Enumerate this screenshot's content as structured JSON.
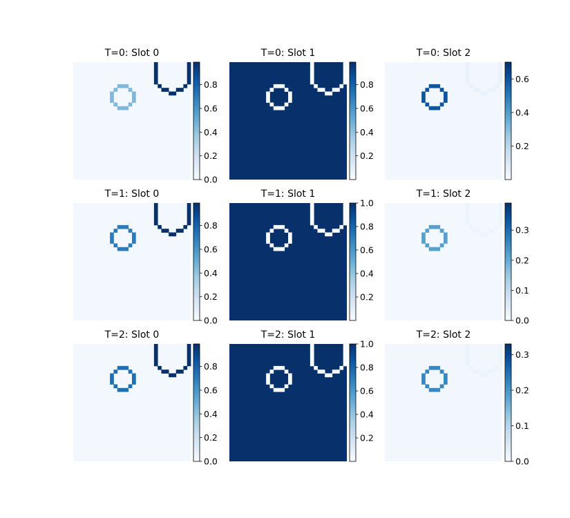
{
  "figure": {
    "colormap": "Blues",
    "colors": {
      "low": "#f7fbff",
      "mid": "#6baed6",
      "high": "#08306b"
    }
  },
  "chart_data": [
    {
      "type": "heatmap",
      "title": "T=0: Slot 0",
      "grid": [
        32,
        32
      ],
      "colorbar": {
        "range": [
          0.0,
          0.99
        ],
        "ticks": [
          0.0,
          0.2,
          0.4,
          0.6,
          0.8
        ],
        "tick_labels": [
          "0.0",
          "0.2",
          "0.4",
          "0.6",
          "0.8"
        ]
      },
      "background_value": 0.02,
      "mask_circle_value": 0.45,
      "mask_arc_value": 0.99
    },
    {
      "type": "heatmap",
      "title": "T=0: Slot 1",
      "grid": [
        32,
        32
      ],
      "colorbar": {
        "range": [
          0.0,
          0.99
        ],
        "ticks": [
          0.2,
          0.4,
          0.6,
          0.8
        ],
        "tick_labels": [
          "0.2",
          "0.4",
          "0.6",
          "0.8"
        ]
      },
      "background_value": 0.99,
      "mask_circle_value": 0.0,
      "mask_arc_value": 0.0
    },
    {
      "type": "heatmap",
      "title": "T=0: Slot 2",
      "grid": [
        32,
        32
      ],
      "colorbar": {
        "range": [
          0.0,
          0.7
        ],
        "ticks": [
          0.2,
          0.4,
          0.6
        ],
        "tick_labels": [
          "0.2",
          "0.4",
          "0.6"
        ]
      },
      "background_value": 0.02,
      "mask_circle_value": 0.6,
      "mask_arc_value": 0.05
    },
    {
      "type": "heatmap",
      "title": "T=1: Slot 0",
      "grid": [
        32,
        32
      ],
      "colorbar": {
        "range": [
          0.0,
          0.99
        ],
        "ticks": [
          0.0,
          0.2,
          0.4,
          0.6,
          0.8
        ],
        "tick_labels": [
          "0.0",
          "0.2",
          "0.4",
          "0.6",
          "0.8"
        ]
      },
      "background_value": 0.02,
      "mask_circle_value": 0.7,
      "mask_arc_value": 0.99
    },
    {
      "type": "heatmap",
      "title": "T=1: Slot 1",
      "grid": [
        32,
        32
      ],
      "colorbar": {
        "range": [
          0.0,
          1.0
        ],
        "ticks": [
          0.2,
          0.4,
          0.6,
          0.8,
          1.0
        ],
        "tick_labels": [
          "0.2",
          "0.4",
          "0.6",
          "0.8",
          "1.0"
        ]
      },
      "background_value": 1.0,
      "mask_circle_value": 0.0,
      "mask_arc_value": 0.0
    },
    {
      "type": "heatmap",
      "title": "T=1: Slot 2",
      "grid": [
        32,
        32
      ],
      "colorbar": {
        "range": [
          0.0,
          0.39
        ],
        "ticks": [
          0.0,
          0.1,
          0.2,
          0.3
        ],
        "tick_labels": [
          "0.0",
          "0.1",
          "0.2",
          "0.3"
        ]
      },
      "background_value": 0.01,
      "mask_circle_value": 0.22,
      "mask_arc_value": 0.02
    },
    {
      "type": "heatmap",
      "title": "T=2: Slot 0",
      "grid": [
        32,
        32
      ],
      "colorbar": {
        "range": [
          0.0,
          0.99
        ],
        "ticks": [
          0.0,
          0.2,
          0.4,
          0.6,
          0.8
        ],
        "tick_labels": [
          "0.0",
          "0.2",
          "0.4",
          "0.6",
          "0.8"
        ]
      },
      "background_value": 0.02,
      "mask_circle_value": 0.75,
      "mask_arc_value": 0.99
    },
    {
      "type": "heatmap",
      "title": "T=2: Slot 1",
      "grid": [
        32,
        32
      ],
      "colorbar": {
        "range": [
          0.0,
          1.0
        ],
        "ticks": [
          0.2,
          0.4,
          0.6,
          0.8,
          1.0
        ],
        "tick_labels": [
          "0.2",
          "0.4",
          "0.6",
          "0.8",
          "1.0"
        ]
      },
      "background_value": 1.0,
      "mask_circle_value": 0.0,
      "mask_arc_value": 0.0
    },
    {
      "type": "heatmap",
      "title": "T=2: Slot 2",
      "grid": [
        32,
        32
      ],
      "colorbar": {
        "range": [
          0.0,
          0.33
        ],
        "ticks": [
          0.0,
          0.1,
          0.2,
          0.3
        ],
        "tick_labels": [
          "0.0",
          "0.1",
          "0.2",
          "0.3"
        ]
      },
      "background_value": 0.01,
      "mask_circle_value": 0.22,
      "mask_arc_value": 0.02
    }
  ]
}
